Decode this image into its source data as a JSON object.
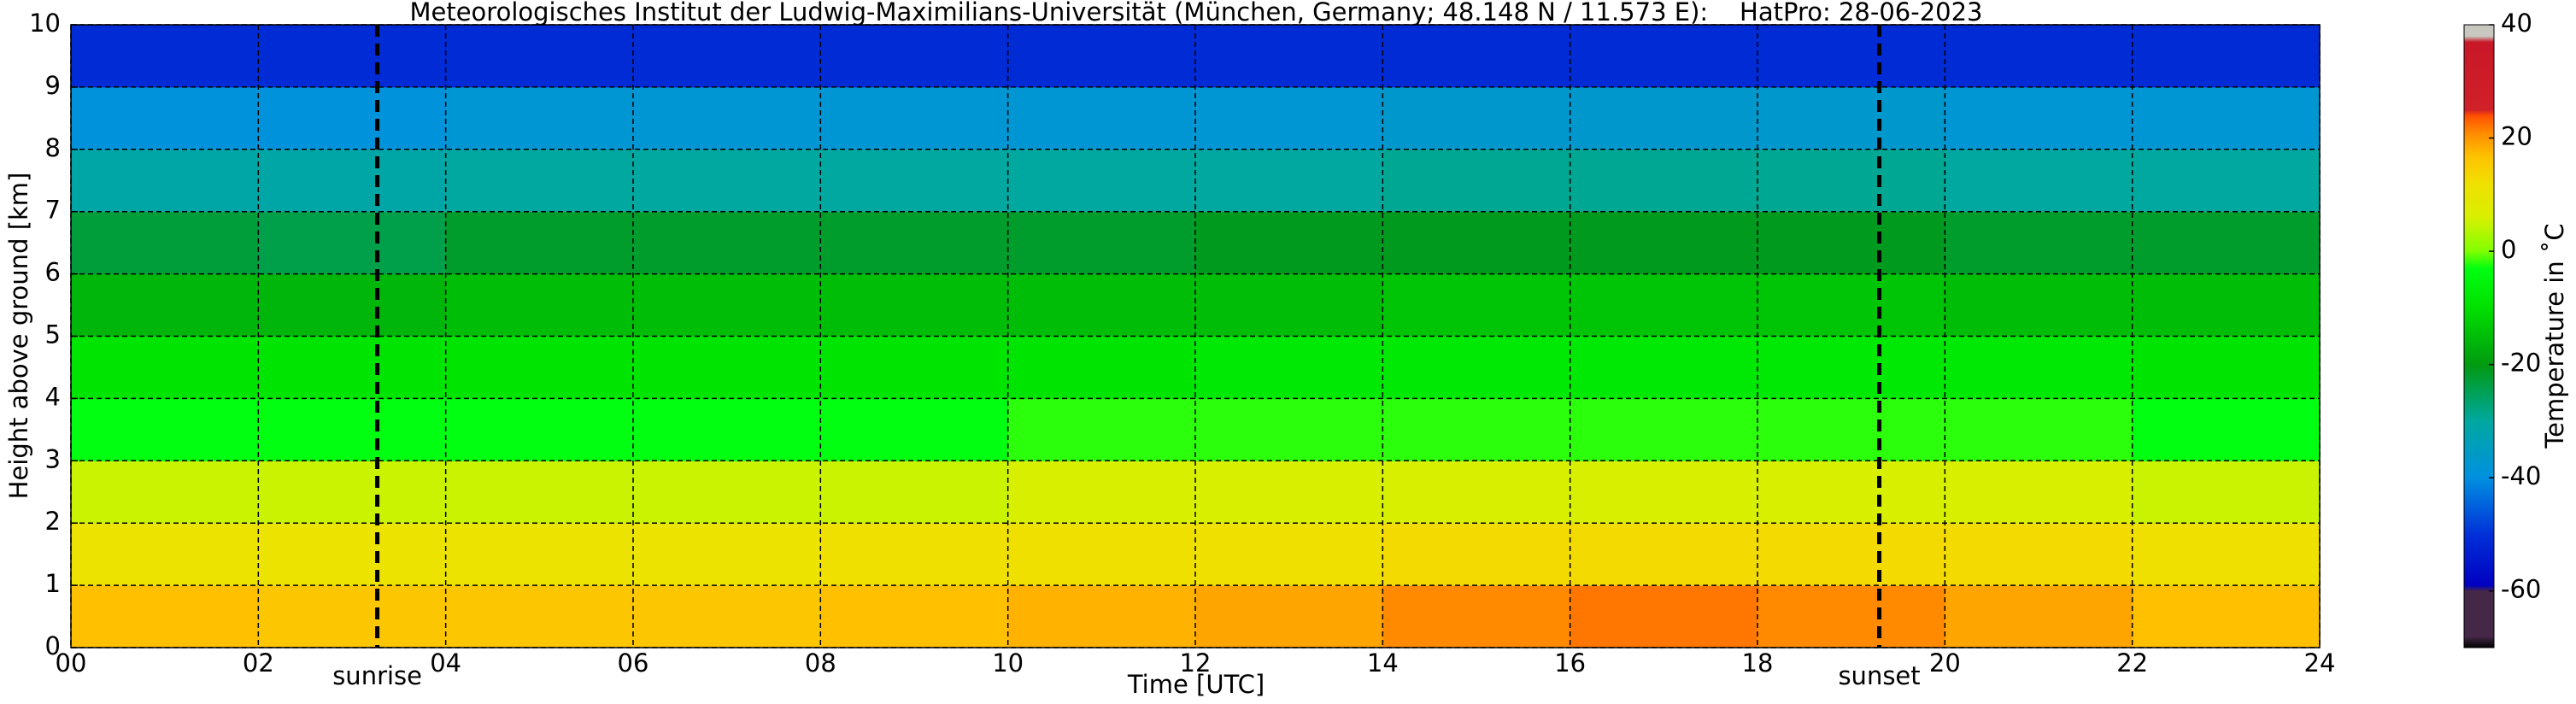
{
  "chart_data": {
    "type": "heatmap",
    "title": "Meteorologisches Institut der Ludwig-Maximilians-Universität (München, Germany; 48.148 N / 11.573 E):    HatPro: 28-06-2023",
    "xlabel": "Time [UTC]",
    "ylabel": "Height above ground [km]",
    "x_edges": [
      0,
      2,
      4,
      6,
      8,
      10,
      12,
      14,
      16,
      18,
      20,
      22,
      24
    ],
    "y_edges": [
      0,
      1,
      2,
      3,
      4,
      5,
      6,
      7,
      8,
      9,
      10
    ],
    "z": [
      [
        17,
        16,
        16,
        16,
        17,
        18,
        19,
        21,
        22,
        21,
        19,
        17
      ],
      [
        11,
        11,
        11,
        11,
        12,
        12,
        12,
        13,
        13,
        13,
        13,
        12
      ],
      [
        5,
        5,
        5,
        5,
        5,
        6,
        6,
        6,
        6,
        6,
        6,
        5
      ],
      [
        -3,
        -3,
        -3,
        -3,
        -3,
        -2,
        -2,
        -2,
        -2,
        -2,
        -2,
        -3
      ],
      [
        -9,
        -9,
        -9,
        -9,
        -9,
        -9,
        -8,
        -8,
        -8,
        -8,
        -8,
        -9
      ],
      [
        -16,
        -16,
        -15,
        -15,
        -15,
        -15,
        -15,
        -14,
        -14,
        -14,
        -15,
        -15
      ],
      [
        -23,
        -24,
        -22,
        -22,
        -22,
        -22,
        -21,
        -21,
        -21,
        -21,
        -22,
        -22
      ],
      [
        -31,
        -31,
        -30,
        -30,
        -30,
        -30,
        -30,
        -29,
        -29,
        -29,
        -30,
        -30
      ],
      [
        -39,
        -39,
        -38,
        -38,
        -38,
        -38,
        -38,
        -37,
        -37,
        -37,
        -38,
        -38
      ],
      [
        -51,
        -51,
        -51,
        -51,
        -51,
        -51,
        -51,
        -51,
        -51,
        -51,
        -51,
        -51
      ]
    ],
    "xlim": [
      0,
      24
    ],
    "xticks": [
      {
        "value": 0,
        "label": "00"
      },
      {
        "value": 2,
        "label": "02"
      },
      {
        "value": 4,
        "label": "04"
      },
      {
        "value": 6,
        "label": "06"
      },
      {
        "value": 8,
        "label": "08"
      },
      {
        "value": 10,
        "label": "10"
      },
      {
        "value": 12,
        "label": "12"
      },
      {
        "value": 14,
        "label": "14"
      },
      {
        "value": 16,
        "label": "16"
      },
      {
        "value": 18,
        "label": "18"
      },
      {
        "value": 20,
        "label": "20"
      },
      {
        "value": 22,
        "label": "22"
      },
      {
        "value": 24,
        "label": "24"
      }
    ],
    "ylim": [
      0,
      10
    ],
    "yticks": [
      0,
      1,
      2,
      3,
      4,
      5,
      6,
      7,
      8,
      9,
      10
    ],
    "grid": true,
    "annotations": [
      {
        "x": 3.27,
        "label": "sunrise"
      },
      {
        "x": 19.3,
        "label": "sunset"
      }
    ],
    "colorbar": {
      "label": "Temperature in ˚C",
      "clim": [
        -70,
        40
      ],
      "ticks": [
        -60,
        -40,
        -20,
        0,
        20,
        40
      ],
      "colorscale": [
        [
          -70,
          "#000000"
        ],
        [
          -68,
          "#452848"
        ],
        [
          -60,
          "#452848"
        ],
        [
          -59,
          "#0000c0"
        ],
        [
          -50,
          "#0030d8"
        ],
        [
          -40,
          "#0090e0"
        ],
        [
          -30,
          "#00a8a0"
        ],
        [
          -20,
          "#009a10"
        ],
        [
          -10,
          "#00e000"
        ],
        [
          -3,
          "#00ff10"
        ],
        [
          0,
          "#80ff00"
        ],
        [
          6,
          "#d8f000"
        ],
        [
          12,
          "#f0e000"
        ],
        [
          17,
          "#ffc000"
        ],
        [
          21,
          "#ff8a00"
        ],
        [
          24,
          "#ff5000"
        ],
        [
          25,
          "#d02028"
        ],
        [
          37,
          "#c81828"
        ],
        [
          38,
          "#c8c8c0"
        ],
        [
          40,
          "#c8c8c0"
        ]
      ]
    }
  }
}
